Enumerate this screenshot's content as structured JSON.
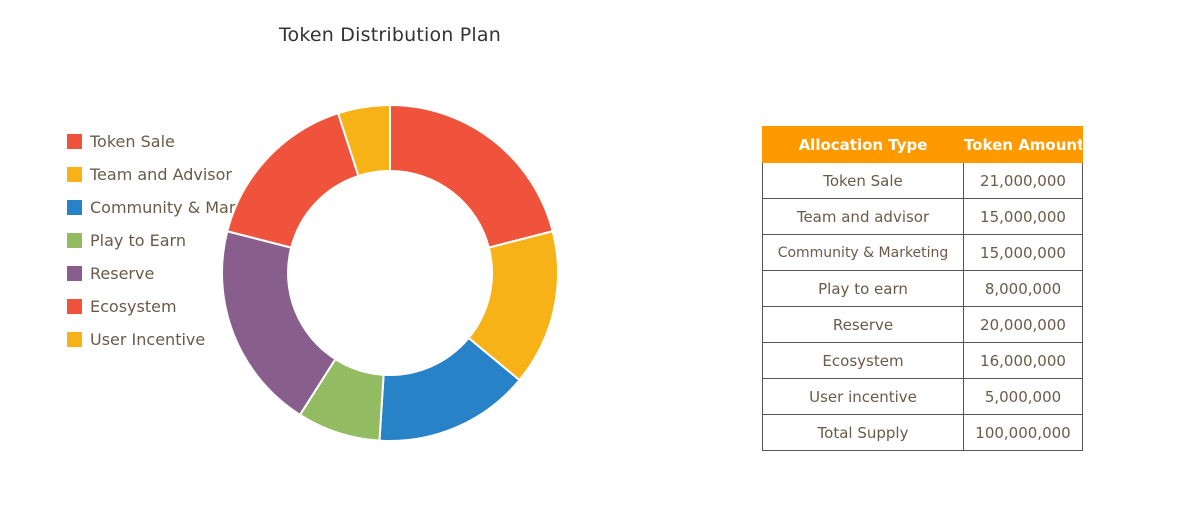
{
  "chart_data": {
    "type": "pie",
    "title": "Token Distribution Plan",
    "donut": true,
    "legend_position": "left",
    "start_angle": "top",
    "series": [
      {
        "name": "Token Sale",
        "value": 21000000,
        "color": "#f0533b"
      },
      {
        "name": "Team and Advisor",
        "value": 15000000,
        "color": "#f7b217"
      },
      {
        "name": "Community & Marketing",
        "value": 15000000,
        "color": "#2882c8"
      },
      {
        "name": "Play to Earn",
        "value": 8000000,
        "color": "#93bb62"
      },
      {
        "name": "Reserve",
        "value": 20000000,
        "color": "#885e8d"
      },
      {
        "name": "Ecosystem",
        "value": 16000000,
        "color": "#f0533b"
      },
      {
        "name": "User Incentive",
        "value": 5000000,
        "color": "#f7b217"
      }
    ]
  },
  "table": {
    "header_color": "#ff9900",
    "headers": [
      "Allocation Type",
      "Token Amount"
    ],
    "rows": [
      [
        "Token Sale",
        "21,000,000"
      ],
      [
        "Team and advisor",
        "15,000,000"
      ],
      [
        "Community & Marketing",
        "15,000,000"
      ],
      [
        "Play to earn",
        "8,000,000"
      ],
      [
        "Reserve",
        "20,000,000"
      ],
      [
        "Ecosystem",
        "16,000,000"
      ],
      [
        "User incentive",
        "5,000,000"
      ],
      [
        "Total Supply",
        "100,000,000"
      ]
    ]
  }
}
